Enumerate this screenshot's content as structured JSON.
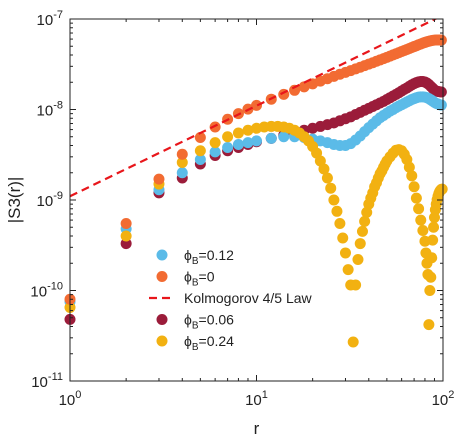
{
  "chart_data": {
    "type": "scatter",
    "xlabel": "r",
    "ylabel": "|S3(r)|",
    "xscale": "log",
    "yscale": "log",
    "xlim": [
      1,
      100
    ],
    "ylim": [
      1e-11,
      1e-07
    ],
    "x_ticks": [
      {
        "value": 1,
        "base": "10",
        "exp": "0"
      },
      {
        "value": 10,
        "base": "10",
        "exp": "1"
      },
      {
        "value": 100,
        "base": "10",
        "exp": "2"
      }
    ],
    "y_ticks": [
      {
        "value": 1e-11,
        "base": "10",
        "exp": "-11"
      },
      {
        "value": 1e-10,
        "base": "10",
        "exp": "-10"
      },
      {
        "value": 1e-09,
        "base": "10",
        "exp": "-9"
      },
      {
        "value": 1e-08,
        "base": "10",
        "exp": "-8"
      },
      {
        "value": 1e-07,
        "base": "10",
        "exp": "-7"
      }
    ],
    "grid": false,
    "legend_position": "lower-left",
    "legend": [
      {
        "ref": "phiB012",
        "label_pre": "ϕ",
        "label_sub": "B",
        "label_post": "=0.12"
      },
      {
        "ref": "phiB0",
        "label_pre": "ϕ",
        "label_sub": "B",
        "label_post": "=0"
      },
      {
        "ref": "kolmogorov",
        "label_pre": "Kolmogorov 4/5 Law",
        "label_sub": "",
        "label_post": ""
      },
      {
        "ref": "phiB006",
        "label_pre": "ϕ",
        "label_sub": "B",
        "label_post": "=0.06"
      },
      {
        "ref": "phiB024",
        "label_pre": "ϕ",
        "label_sub": "B",
        "label_post": "=0.24"
      }
    ],
    "line": {
      "id": "kolmogorov",
      "color": "#e8161b",
      "style": "dashed",
      "x": [
        1,
        100
      ],
      "y": [
        1.1e-09,
        1.1e-07
      ]
    },
    "series": [
      {
        "id": "phiB006",
        "color": "#9b1c3a",
        "x": [
          1,
          2,
          3,
          4,
          5,
          6,
          7,
          8,
          9,
          10,
          12,
          14,
          16,
          18,
          20,
          22,
          24,
          26,
          28,
          30,
          32,
          34,
          36,
          38,
          40,
          42,
          44,
          46,
          48,
          50,
          52,
          54,
          56,
          58,
          60,
          62,
          64,
          66,
          68,
          70,
          72,
          74,
          76,
          78,
          80,
          82,
          84,
          86,
          88,
          90,
          92,
          94,
          96,
          98
        ],
        "y": [
          4.8e-11,
          3.3e-10,
          1.2e-09,
          1.75e-09,
          2.5e-09,
          3.1e-09,
          3.5e-09,
          3.8e-09,
          4.1e-09,
          4.4e-09,
          4.8e-09,
          5.2e-09,
          5.5e-09,
          5.9e-09,
          6.2e-09,
          6.5e-09,
          6.8e-09,
          7.1e-09,
          7.5e-09,
          7.9e-09,
          8.3e-09,
          8.8e-09,
          9.3e-09,
          9.8e-09,
          1.03e-08,
          1.08e-08,
          1.13e-08,
          1.18e-08,
          1.23e-08,
          1.29e-08,
          1.35e-08,
          1.41e-08,
          1.47e-08,
          1.53e-08,
          1.6e-08,
          1.67e-08,
          1.73e-08,
          1.8e-08,
          1.87e-08,
          1.93e-08,
          1.98e-08,
          2.02e-08,
          2.04e-08,
          2.04e-08,
          2.01e-08,
          1.96e-08,
          1.89e-08,
          1.8e-08,
          1.72e-08,
          1.64e-08,
          1.6e-08,
          1.58e-08,
          1.57e-08,
          1.56e-08
        ]
      },
      {
        "id": "phiB012",
        "color": "#5bbbe8",
        "x": [
          1,
          2,
          3,
          4,
          5,
          6,
          7,
          8,
          9,
          10,
          12,
          14,
          16,
          18,
          20,
          22,
          24,
          26,
          28,
          30,
          32,
          34,
          36,
          38,
          40,
          42,
          44,
          46,
          48,
          50,
          52,
          54,
          56,
          58,
          60,
          62,
          64,
          66,
          68,
          70,
          72,
          74,
          76,
          78,
          80,
          82,
          84,
          86,
          88,
          90,
          92,
          94,
          96,
          98
        ],
        "y": [
          7.5e-11,
          4.8e-10,
          1.3e-09,
          2e-09,
          2.8e-09,
          3.4e-09,
          3.8e-09,
          4.1e-09,
          4.3e-09,
          4.5e-09,
          4.8e-09,
          5e-09,
          5e-09,
          4.9e-09,
          4.7e-09,
          4.5e-09,
          4.3e-09,
          4.1e-09,
          4e-09,
          4e-09,
          4.2e-09,
          4.6e-09,
          5.1e-09,
          5.7e-09,
          6.3e-09,
          6.9e-09,
          7.5e-09,
          8.1e-09,
          8.6e-09,
          9.1e-09,
          9.6e-09,
          1e-08,
          1.05e-08,
          1.09e-08,
          1.13e-08,
          1.17e-08,
          1.21e-08,
          1.25e-08,
          1.29e-08,
          1.32e-08,
          1.35e-08,
          1.37e-08,
          1.38e-08,
          1.38e-08,
          1.37e-08,
          1.35e-08,
          1.32e-08,
          1.28e-08,
          1.24e-08,
          1.2e-08,
          1.17e-08,
          1.15e-08,
          1.13e-08,
          1.12e-08
        ]
      },
      {
        "id": "phiB024",
        "color": "#f2b111",
        "x": [
          1,
          2,
          3,
          4,
          5,
          6,
          7,
          8,
          9,
          10,
          11,
          12,
          13,
          14,
          15,
          16,
          17,
          18,
          19,
          20,
          21,
          22,
          23,
          24,
          25,
          26,
          27,
          28,
          29,
          30,
          31,
          32,
          33,
          34,
          35,
          36,
          37,
          38,
          39,
          40,
          41,
          42,
          43,
          44,
          45,
          46,
          47,
          48,
          49,
          50,
          52,
          54,
          56,
          58,
          60,
          62,
          64,
          66,
          68,
          70,
          72,
          74,
          76,
          78,
          80,
          81,
          82,
          83,
          84,
          85,
          86,
          87,
          88,
          89,
          90,
          91,
          92,
          93,
          94,
          95,
          96,
          97,
          98,
          99
        ],
        "y": [
          6.5e-11,
          4e-10,
          1.5e-09,
          2.6e-09,
          3.5e-09,
          4.3e-09,
          5e-09,
          5.5e-09,
          5.9e-09,
          6.2e-09,
          6.4e-09,
          6.5e-09,
          6.5e-09,
          6.4e-09,
          6.2e-09,
          5.9e-09,
          5.5e-09,
          5e-09,
          4.5e-09,
          3.9e-09,
          3.3e-09,
          2.7e-09,
          2.2e-09,
          1.75e-09,
          1.35e-09,
          1e-09,
          7.5e-10,
          5.5e-10,
          3.8e-10,
          2.6e-10,
          1.7e-10,
          1.15e-10,
          2.7e-11,
          1.15e-10,
          2.2e-10,
          3.3e-10,
          4.5e-10,
          5.8e-10,
          7.3e-10,
          9e-10,
          1.05e-09,
          1.2e-09,
          1.4e-09,
          1.55e-09,
          1.75e-09,
          1.95e-09,
          2.1e-09,
          2.3e-09,
          2.5e-09,
          2.7e-09,
          3e-09,
          3.3e-09,
          3.55e-09,
          3.6e-09,
          3.5e-09,
          3.2e-09,
          2.8e-09,
          2.3e-09,
          1.85e-09,
          1.4e-09,
          1.05e-09,
          8e-10,
          6e-10,
          4.6e-10,
          3.5e-10,
          2.6e-10,
          2e-10,
          1.5e-10,
          4.2e-11,
          1e-10,
          1.4e-10,
          2.3e-10,
          3.6e-10,
          5e-10,
          6.4e-10,
          7.8e-10,
          9e-10,
          1.01e-09,
          1.1e-09,
          1.18e-09,
          1.24e-09,
          1.28e-09,
          1.31e-09,
          1.32e-09
        ]
      },
      {
        "id": "phiB0",
        "color": "#f26b32",
        "x": [
          1,
          2,
          3,
          4,
          5,
          6,
          7,
          8,
          9,
          10,
          12,
          14,
          16,
          18,
          20,
          22,
          24,
          26,
          28,
          30,
          32,
          34,
          36,
          38,
          40,
          42,
          44,
          46,
          48,
          50,
          52,
          54,
          56,
          58,
          60,
          62,
          64,
          66,
          68,
          70,
          72,
          74,
          76,
          78,
          80,
          82,
          84,
          86,
          88,
          90,
          92,
          94,
          96,
          98
        ],
        "y": [
          8e-11,
          5.5e-10,
          1.7e-09,
          3.2e-09,
          4.9e-09,
          6.4e-09,
          7.8e-09,
          9e-09,
          1.01e-08,
          1.11e-08,
          1.3e-08,
          1.47e-08,
          1.63e-08,
          1.78e-08,
          1.92e-08,
          2.06e-08,
          2.19e-08,
          2.32e-08,
          2.45e-08,
          2.57e-08,
          2.69e-08,
          2.81e-08,
          2.93e-08,
          3.05e-08,
          3.17e-08,
          3.29e-08,
          3.41e-08,
          3.53e-08,
          3.65e-08,
          3.77e-08,
          3.89e-08,
          4.01e-08,
          4.13e-08,
          4.25e-08,
          4.37e-08,
          4.49e-08,
          4.6e-08,
          4.72e-08,
          4.84e-08,
          4.96e-08,
          5.07e-08,
          5.19e-08,
          5.3e-08,
          5.41e-08,
          5.51e-08,
          5.6e-08,
          5.68e-08,
          5.75e-08,
          5.8e-08,
          5.84e-08,
          5.86e-08,
          5.87e-08,
          5.86e-08,
          5.84e-08
        ]
      }
    ]
  }
}
